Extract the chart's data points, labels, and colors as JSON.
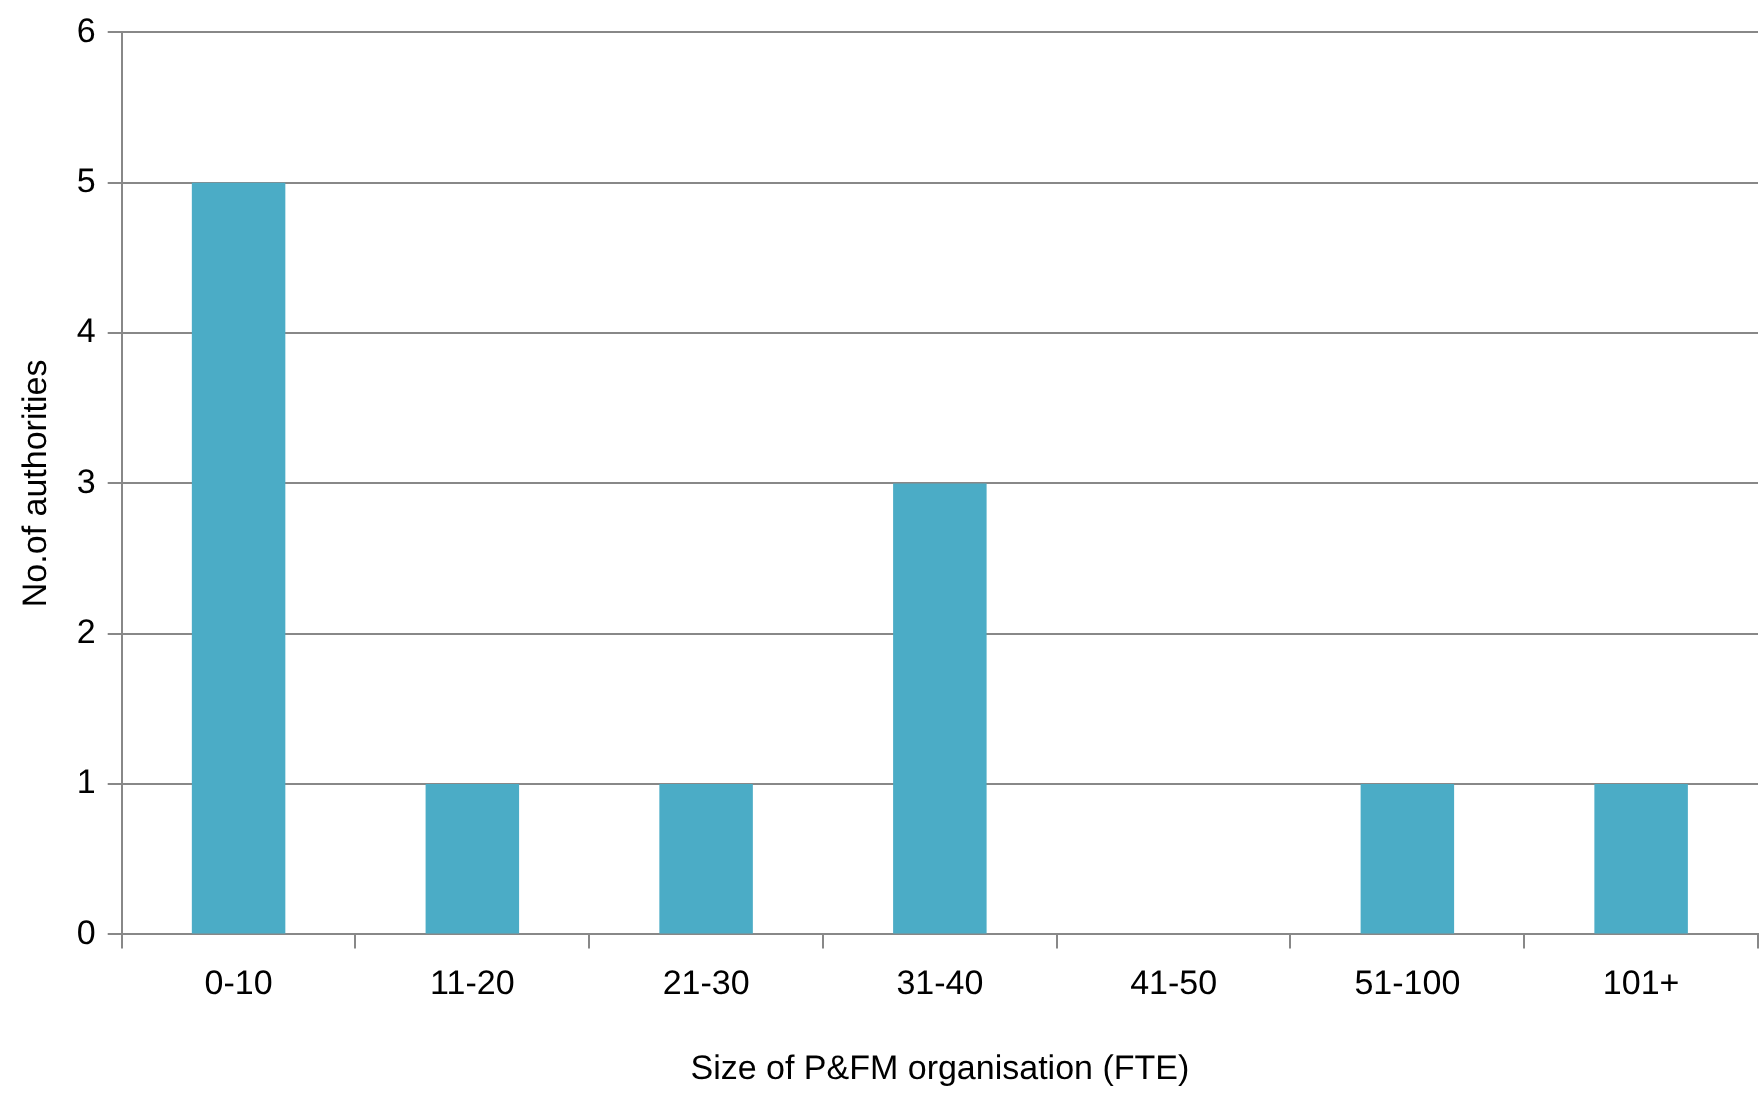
{
  "chart_data": {
    "type": "bar",
    "xlabel": "Size of P&FM organisation (FTE)",
    "ylabel": "No.of authorities",
    "categories": [
      "0-10",
      "11-20",
      "21-30",
      "31-40",
      "41-50",
      "51-100",
      "101+"
    ],
    "values": [
      5,
      1,
      1,
      3,
      0,
      1,
      1
    ],
    "color": "#4bacc6",
    "ylim": [
      0,
      6
    ],
    "yticks": [
      0,
      1,
      2,
      3,
      4,
      5,
      6
    ],
    "grid": "y"
  }
}
